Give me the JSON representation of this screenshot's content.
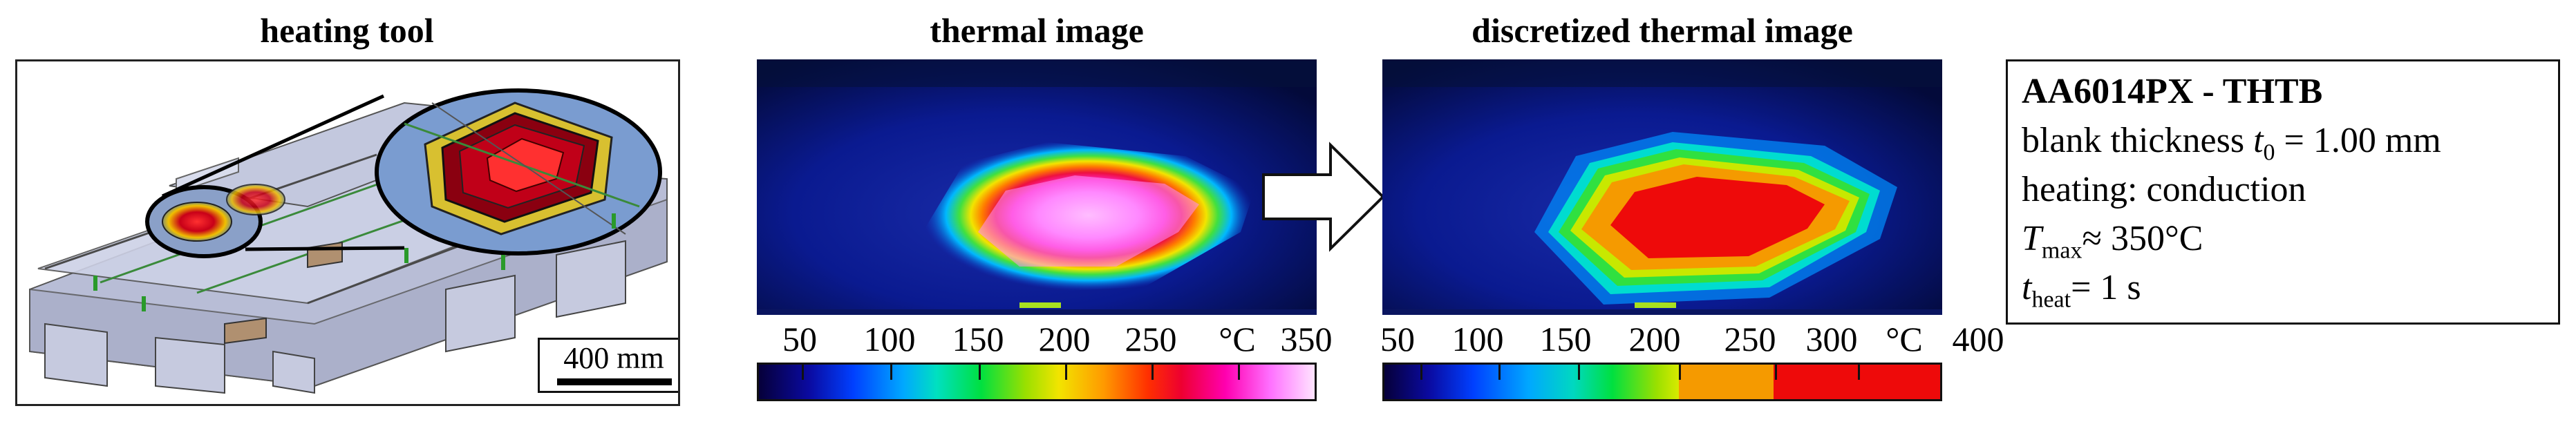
{
  "titles": {
    "heating_tool": "heating tool",
    "thermal_image": "thermal image",
    "discretized_thermal_image": "discretized thermal image"
  },
  "scale_bar": {
    "label": "400 mm"
  },
  "colorbar_raw": {
    "unit": "°C",
    "tick_labels": [
      "50",
      "100",
      "150",
      "200",
      "250",
      "350"
    ]
  },
  "colorbar_discretized": {
    "unit": "°C",
    "tick_labels": [
      "50",
      "100",
      "150",
      "200",
      "250",
      "300",
      "400"
    ]
  },
  "info_box": {
    "title": "AA6014PX - THTB",
    "line1_prefix": "blank thickness ",
    "line1_symbol": "t",
    "line1_sub": "0",
    "line1_value": " = 1.00 mm",
    "line2": "heating: conduction",
    "line3_symbol": "T",
    "line3_sub": "max",
    "line3_value": "≈ 350°C",
    "line4_symbol": "t",
    "line4_sub": "heat",
    "line4_value": "= 1 s"
  },
  "colors": {
    "background": "#ffffff",
    "border": "#111111",
    "hot_red": "#ee0a0a",
    "orange": "#f59a00",
    "magenta": "#ff70ff"
  },
  "icons": {
    "process_arrow": "right-arrow-icon"
  }
}
